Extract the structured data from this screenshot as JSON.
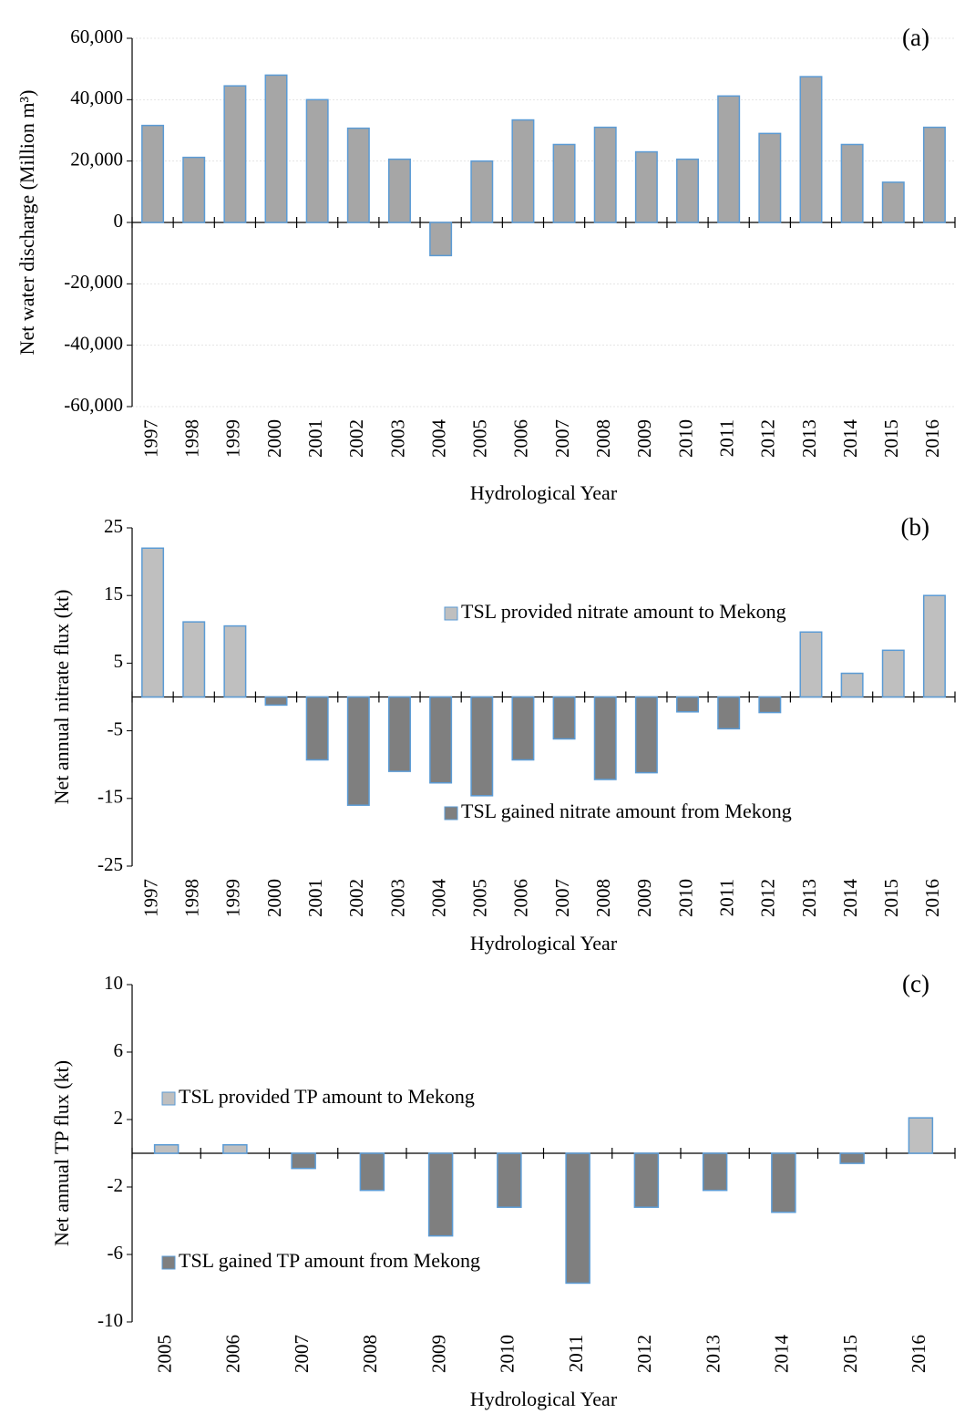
{
  "chart_data": [
    {
      "type": "bar",
      "annotation": "(a)",
      "xlabel": "Hydrological Year",
      "ylabel": "Net water discharge  (Million m³)",
      "categories": [
        "1997",
        "1998",
        "1999",
        "2000",
        "2001",
        "2002",
        "2003",
        "2004",
        "2005",
        "2006",
        "2007",
        "2008",
        "2009",
        "2010",
        "2011",
        "2012",
        "2013",
        "2014",
        "2015",
        "2016"
      ],
      "values": [
        31600,
        21200,
        44500,
        48000,
        40000,
        30700,
        20600,
        -10800,
        20000,
        33400,
        25400,
        31000,
        23000,
        20600,
        41200,
        29000,
        47500,
        25400,
        13100,
        31000
      ],
      "color": "#a6a6a6",
      "edge_color": "#5b9bd5",
      "ylim": [
        -60000,
        60000
      ],
      "yticks": [
        {
          "value": -60000,
          "label": "-60,000"
        },
        {
          "value": -40000,
          "label": "-40,000"
        },
        {
          "value": -20000,
          "label": "-20,000"
        },
        0,
        {
          "value": 20000,
          "label": "20,000"
        },
        {
          "value": 40000,
          "label": "40,000"
        },
        {
          "value": 60000,
          "label": "60,000"
        }
      ],
      "grid": true
    },
    {
      "type": "bar",
      "annotation": "(b)",
      "xlabel": "Hydrological Year",
      "ylabel": "Net annual nitrate flux (kt)",
      "categories": [
        "1997",
        "1998",
        "1999",
        "2000",
        "2001",
        "2002",
        "2003",
        "2004",
        "2005",
        "2006",
        "2007",
        "2008",
        "2009",
        "2010",
        "2011",
        "2012",
        "2013",
        "2014",
        "2015",
        "2016"
      ],
      "series": [
        {
          "name": "TSL provided nitrate amount to Mekong",
          "color": "#bfbfbf",
          "values": [
            22,
            11.1,
            10.5,
            null,
            null,
            null,
            null,
            null,
            null,
            null,
            null,
            null,
            null,
            null,
            null,
            null,
            9.6,
            3.5,
            6.9,
            15
          ]
        },
        {
          "name": "TSL gained nitrate amount from Mekong",
          "color": "#7f7f7f",
          "values": [
            null,
            null,
            null,
            -1.2,
            -9.3,
            -16,
            -11,
            -12.7,
            -14.6,
            -9.3,
            -6.2,
            -12.2,
            -11.2,
            -2.2,
            -4.7,
            -2.3,
            null,
            null,
            null,
            null
          ]
        }
      ],
      "edge_color": "#5b9bd5",
      "ylim": [
        -25,
        25
      ],
      "yticks": [
        -25,
        -15,
        -5,
        5,
        15,
        25
      ],
      "grid": false
    },
    {
      "type": "bar",
      "annotation": "(c)",
      "xlabel": "Hydrological Year",
      "ylabel": "Net annual TP flux (kt)",
      "categories": [
        "2005",
        "2006",
        "2007",
        "2008",
        "2009",
        "2010",
        "2011",
        "2012",
        "2013",
        "2014",
        "2015",
        "2016"
      ],
      "series": [
        {
          "name": "TSL provided TP amount to Mekong",
          "color": "#bfbfbf",
          "values": [
            0.5,
            0.5,
            null,
            null,
            null,
            null,
            null,
            null,
            null,
            null,
            null,
            2.1
          ]
        },
        {
          "name": "TSL gained TP amount from Mekong",
          "color": "#7f7f7f",
          "values": [
            null,
            null,
            -0.9,
            -2.2,
            -4.9,
            -3.2,
            -7.7,
            -3.2,
            -2.2,
            -3.5,
            -0.6,
            null
          ]
        }
      ],
      "edge_color": "#5b9bd5",
      "ylim": [
        -10,
        10
      ],
      "yticks": [
        -10,
        -6,
        -2,
        2,
        6,
        10
      ],
      "grid": false
    }
  ]
}
